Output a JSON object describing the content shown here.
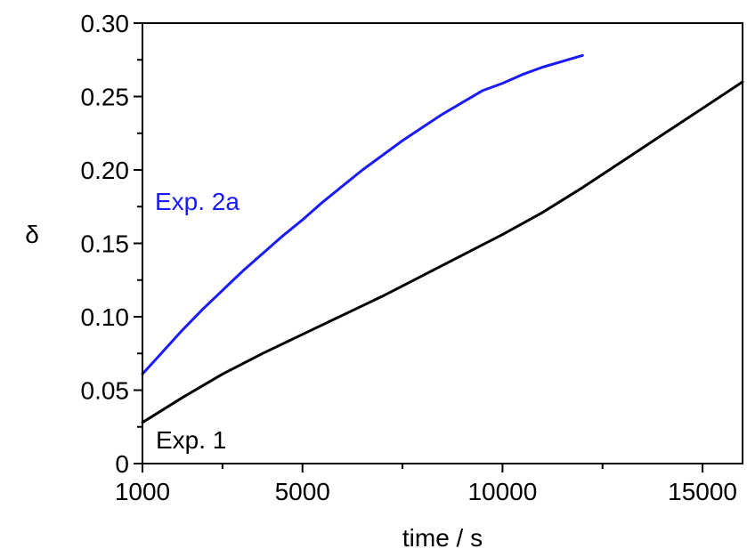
{
  "chart_data": {
    "type": "line",
    "xlabel": "time / s",
    "ylabel": "δ",
    "xlim": [
      1000,
      16000
    ],
    "ylim": [
      0,
      0.3
    ],
    "x_ticks": [
      {
        "value": 1000,
        "label": "1000"
      },
      {
        "value": 5000,
        "label": "5000"
      },
      {
        "value": 10000,
        "label": "10000"
      },
      {
        "value": 15000,
        "label": "15000"
      }
    ],
    "y_ticks": [
      {
        "value": 0,
        "label": "0"
      },
      {
        "value": 0.05,
        "label": "0.05"
      },
      {
        "value": 0.1,
        "label": "0.10"
      },
      {
        "value": 0.15,
        "label": "0.15"
      },
      {
        "value": 0.2,
        "label": "0.20"
      },
      {
        "value": 0.25,
        "label": "0.25"
      },
      {
        "value": 0.3,
        "label": "0.30"
      }
    ],
    "grid": false,
    "series": [
      {
        "name": "Exp. 2a",
        "color": "#1a1aff",
        "x": [
          1000,
          1500,
          2000,
          2500,
          3000,
          3500,
          4000,
          4500,
          5000,
          5500,
          6000,
          6500,
          7000,
          7500,
          8000,
          8500,
          9000,
          9500,
          10000,
          10500,
          11000,
          11500,
          12000
        ],
        "y": [
          0.061,
          0.076,
          0.091,
          0.105,
          0.118,
          0.131,
          0.143,
          0.155,
          0.166,
          0.178,
          0.189,
          0.2,
          0.21,
          0.22,
          0.229,
          0.238,
          0.246,
          0.254,
          0.259,
          0.265,
          0.27,
          0.274,
          0.278
        ]
      },
      {
        "name": "Exp. 1",
        "color": "#000000",
        "x": [
          1000,
          2000,
          3000,
          4000,
          5000,
          6000,
          7000,
          8000,
          9000,
          10000,
          11000,
          12000,
          13000,
          14000,
          15000,
          16000
        ],
        "y": [
          0.028,
          0.045,
          0.061,
          0.075,
          0.088,
          0.101,
          0.114,
          0.128,
          0.142,
          0.156,
          0.171,
          0.188,
          0.206,
          0.224,
          0.242,
          0.26
        ]
      }
    ],
    "annotations": [
      {
        "text": "Exp. 2a",
        "color": "#1a1aff"
      },
      {
        "text": "Exp. 1",
        "color": "#000000"
      }
    ]
  }
}
